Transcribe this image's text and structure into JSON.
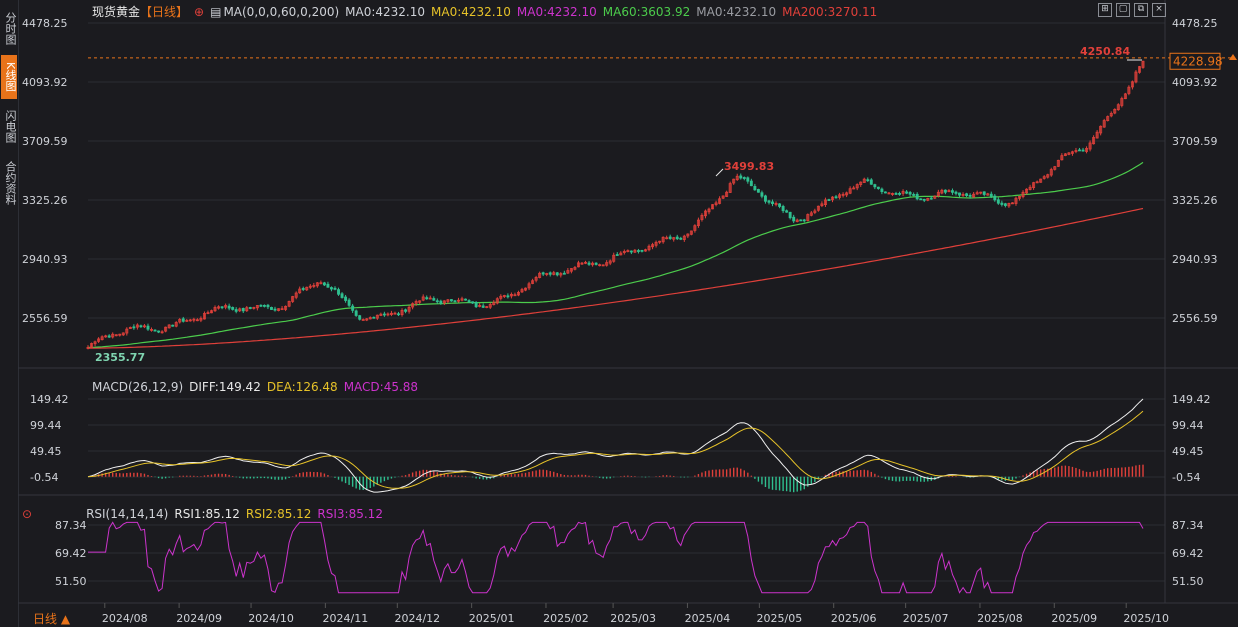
{
  "sidebar": {
    "tabs": [
      {
        "label": "分时图",
        "active": false
      },
      {
        "label": "K线图",
        "active": true
      },
      {
        "label": "闪电图",
        "active": false
      },
      {
        "label": "合约资料",
        "active": false
      }
    ]
  },
  "header": {
    "title": "现货黄金",
    "period": "【日线】",
    "ma_params": "MA(0,0,0,60,0,200)",
    "ma_values": [
      {
        "label": "MA0:4232.10",
        "color": "#cfd2d8"
      },
      {
        "label": "MA0:4232.10",
        "color": "#e6c229"
      },
      {
        "label": "MA0:4232.10",
        "color": "#cc33cc"
      },
      {
        "label": "MA60:3603.92",
        "color": "#4ccc4c"
      },
      {
        "label": "MA0:4232.10",
        "color": "#9a9ca2"
      },
      {
        "label": "MA200:3270.11",
        "color": "#e0403a"
      }
    ]
  },
  "macd_legend": {
    "params": "MACD(26,12,9)",
    "diff": "DIFF:149.42",
    "dea": "DEA:126.48",
    "macd": "MACD:45.88"
  },
  "rsi_legend": {
    "params": "RSI(14,14,14)",
    "rsi1": "RSI1:85.12",
    "rsi2": "RSI2:85.12",
    "rsi3": "RSI3:85.12"
  },
  "period_button": "日线 ▲",
  "colors": {
    "up": "#e0403a",
    "down": "#2fbf8f",
    "ma60": "#4ccc4c",
    "ma200": "#e0403a",
    "diff": "#f0f0f0",
    "dea": "#e6c229",
    "rsi": "#cc33cc",
    "background": "#1b1b1f",
    "grid": "#2b2d33",
    "last_price": "#e8731a"
  },
  "chart_data": [
    {
      "type": "candlestick",
      "title": "现货黄金 日线",
      "x_ticks": [
        "2024/08",
        "2024/09",
        "2024/10",
        "2024/11",
        "2024/12",
        "2025/01",
        "2025/02",
        "2025/03",
        "2025/04",
        "2025/05",
        "2025/06",
        "2025/07",
        "2025/08",
        "2025/09",
        "2025/10"
      ],
      "y_ticks": [
        "4478.25",
        "4093.92",
        "3709.59",
        "3325.26",
        "2940.93",
        "2556.59"
      ],
      "ylim": [
        2400,
        4478.25
      ],
      "last_price": "4228.98",
      "annotations": [
        {
          "label": "4250.84",
          "kind": "high"
        },
        {
          "label": "3499.83",
          "kind": "high"
        },
        {
          "label": "2355.77",
          "kind": "low"
        }
      ],
      "price_path_monthly": [
        {
          "date": "2024/07/25",
          "close": 2365
        },
        {
          "date": "2024/08/15",
          "close": 2490
        },
        {
          "date": "2024/09/15",
          "close": 2580
        },
        {
          "date": "2024/10/15",
          "close": 2670
        },
        {
          "date": "2024/10/30",
          "close": 2780
        },
        {
          "date": "2024/11/15",
          "close": 2570
        },
        {
          "date": "2024/12/15",
          "close": 2650
        },
        {
          "date": "2025/01/15",
          "close": 2690
        },
        {
          "date": "2025/02/15",
          "close": 2920
        },
        {
          "date": "2025/03/15",
          "close": 2990
        },
        {
          "date": "2025/04/01",
          "close": 3130
        },
        {
          "date": "2025/04/21",
          "close": 3450
        },
        {
          "date": "2025/05/15",
          "close": 3220
        },
        {
          "date": "2025/06/15",
          "close": 3420
        },
        {
          "date": "2025/07/15",
          "close": 3350
        },
        {
          "date": "2025/08/15",
          "close": 3340
        },
        {
          "date": "2025/09/15",
          "close": 3680
        },
        {
          "date": "2025/10/08",
          "close": 4228.98
        }
      ],
      "series": [
        {
          "name": "MA60",
          "values_at_start_end": [
            2365,
            3603.92
          ]
        },
        {
          "name": "MA200",
          "values_at_start_end": [
            2360,
            3270.11
          ]
        }
      ]
    },
    {
      "type": "bar",
      "title": "MACD(26,12,9)",
      "y_ticks": [
        "149.42",
        "99.44",
        "49.45",
        "-0.54"
      ],
      "ylim": [
        -40,
        149.42
      ],
      "series": [
        {
          "name": "DIFF",
          "last": 149.42
        },
        {
          "name": "DEA",
          "last": 126.48
        },
        {
          "name": "MACD",
          "last": 45.88
        }
      ]
    },
    {
      "type": "line",
      "title": "RSI(14,14,14)",
      "y_ticks": [
        "87.34",
        "69.42",
        "51.50"
      ],
      "ylim": [
        40,
        90
      ],
      "series": [
        {
          "name": "RSI1",
          "last": 85.12
        }
      ]
    }
  ]
}
